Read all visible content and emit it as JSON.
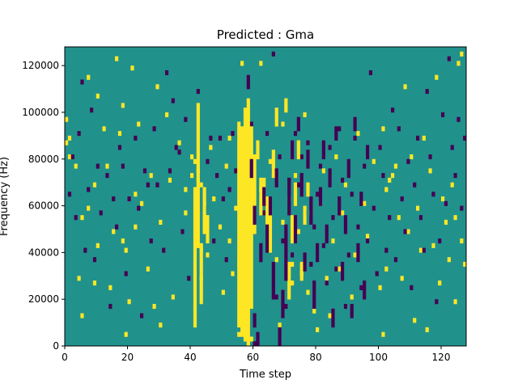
{
  "chart_data": {
    "type": "heatmap",
    "title": "Predicted : Gma",
    "xlabel": "Time step",
    "ylabel": "Frequency (Hz)",
    "xlim": [
      0,
      128
    ],
    "ylim": [
      0,
      128000
    ],
    "x_ticks": [
      0,
      20,
      40,
      60,
      80,
      100,
      120
    ],
    "x_tick_labels": [
      "0",
      "20",
      "40",
      "60",
      "80",
      "100",
      "120"
    ],
    "y_ticks": [
      0,
      20000,
      40000,
      60000,
      80000,
      100000,
      120000
    ],
    "y_tick_labels": [
      "0",
      "20000",
      "40000",
      "60000",
      "80000",
      "100000",
      "120000"
    ],
    "grid": false,
    "colormap": "viridis",
    "value_levels": [
      -1,
      0,
      1
    ],
    "level_colors": {
      "-1": "#440154",
      "0": "#21918c",
      "1": "#fde725"
    },
    "background_level": 0,
    "frequency_bins": 64,
    "bin_width_hz": 2000,
    "cells_high": [
      [
        0,
        43
      ],
      [
        0,
        48
      ],
      [
        1,
        40
      ],
      [
        1,
        44
      ],
      [
        3,
        38
      ],
      [
        4,
        14
      ],
      [
        5,
        6
      ],
      [
        5,
        27
      ],
      [
        7,
        29
      ],
      [
        7,
        57
      ],
      [
        9,
        13
      ],
      [
        9,
        34
      ],
      [
        10,
        21
      ],
      [
        10,
        53
      ],
      [
        12,
        46
      ],
      [
        13,
        38
      ],
      [
        14,
        12
      ],
      [
        15,
        24
      ],
      [
        16,
        61
      ],
      [
        17,
        45
      ],
      [
        18,
        22
      ],
      [
        18,
        51
      ],
      [
        19,
        2
      ],
      [
        19,
        20
      ],
      [
        20,
        9
      ],
      [
        21,
        59
      ],
      [
        22,
        25
      ],
      [
        22,
        32
      ],
      [
        23,
        47
      ],
      [
        24,
        30
      ],
      [
        26,
        16
      ],
      [
        27,
        36
      ],
      [
        28,
        8
      ],
      [
        29,
        55
      ],
      [
        30,
        26
      ],
      [
        30,
        4
      ],
      [
        32,
        49
      ],
      [
        33,
        35
      ],
      [
        34,
        10
      ],
      [
        36,
        43
      ],
      [
        38,
        28
      ],
      [
        38,
        33
      ],
      [
        40,
        40
      ],
      [
        40,
        36
      ],
      [
        41,
        39
      ],
      [
        42,
        37
      ],
      [
        42,
        35
      ],
      [
        43,
        14
      ],
      [
        43,
        20
      ],
      [
        43,
        34
      ],
      [
        44,
        27
      ],
      [
        44,
        30
      ],
      [
        45,
        19
      ],
      [
        46,
        42
      ],
      [
        47,
        31
      ],
      [
        49,
        25
      ],
      [
        50,
        11
      ],
      [
        51,
        38
      ],
      [
        52,
        44
      ],
      [
        52,
        22
      ],
      [
        53,
        15
      ],
      [
        54,
        29
      ],
      [
        55,
        2
      ],
      [
        55,
        17
      ],
      [
        56,
        60
      ],
      [
        57,
        1
      ],
      [
        58,
        1
      ],
      [
        59,
        1
      ],
      [
        62,
        33
      ],
      [
        62,
        60
      ],
      [
        65,
        39
      ],
      [
        67,
        18
      ],
      [
        68,
        4
      ],
      [
        69,
        26
      ],
      [
        69,
        47
      ],
      [
        71,
        31
      ],
      [
        72,
        17
      ],
      [
        72,
        13
      ],
      [
        73,
        36
      ],
      [
        74,
        24
      ],
      [
        75,
        15
      ],
      [
        76,
        49
      ],
      [
        77,
        11
      ],
      [
        78,
        28
      ],
      [
        79,
        7
      ],
      [
        80,
        3
      ],
      [
        81,
        30
      ],
      [
        82,
        37
      ],
      [
        83,
        14
      ],
      [
        84,
        6
      ],
      [
        85,
        22
      ],
      [
        86,
        40
      ],
      [
        87,
        16
      ],
      [
        88,
        28
      ],
      [
        89,
        34
      ],
      [
        91,
        10
      ],
      [
        92,
        19
      ],
      [
        93,
        45
      ],
      [
        95,
        30
      ],
      [
        96,
        23
      ],
      [
        98,
        39
      ],
      [
        100,
        12
      ],
      [
        101,
        2
      ],
      [
        101,
        46
      ],
      [
        102,
        33
      ],
      [
        102,
        16
      ],
      [
        103,
        35
      ],
      [
        104,
        36
      ],
      [
        105,
        38
      ],
      [
        106,
        27
      ],
      [
        107,
        14
      ],
      [
        108,
        55
      ],
      [
        109,
        24
      ],
      [
        110,
        40
      ],
      [
        111,
        5
      ],
      [
        112,
        29
      ],
      [
        113,
        20
      ],
      [
        114,
        44
      ],
      [
        115,
        3
      ],
      [
        116,
        37
      ],
      [
        117,
        21
      ],
      [
        118,
        57
      ],
      [
        119,
        13
      ],
      [
        120,
        31
      ],
      [
        121,
        26
      ],
      [
        122,
        18
      ],
      [
        123,
        34
      ],
      [
        124,
        9
      ],
      [
        124,
        27
      ],
      [
        125,
        60
      ],
      [
        126,
        62
      ],
      [
        126,
        22
      ],
      [
        127,
        17
      ]
    ],
    "cells_low": [
      [
        1,
        32
      ],
      [
        2,
        40
      ],
      [
        3,
        27
      ],
      [
        4,
        45
      ],
      [
        5,
        56
      ],
      [
        6,
        20
      ],
      [
        7,
        33
      ],
      [
        8,
        50
      ],
      [
        9,
        18
      ],
      [
        10,
        38
      ],
      [
        11,
        28
      ],
      [
        13,
        36
      ],
      [
        14,
        8
      ],
      [
        15,
        31
      ],
      [
        16,
        25
      ],
      [
        17,
        42
      ],
      [
        18,
        38
      ],
      [
        19,
        15
      ],
      [
        20,
        31
      ],
      [
        22,
        44
      ],
      [
        23,
        29
      ],
      [
        24,
        6
      ],
      [
        25,
        37
      ],
      [
        26,
        34
      ],
      [
        27,
        22
      ],
      [
        28,
        46
      ],
      [
        29,
        34
      ],
      [
        31,
        20
      ],
      [
        32,
        58
      ],
      [
        33,
        37
      ],
      [
        34,
        52
      ],
      [
        35,
        42
      ],
      [
        36,
        41
      ],
      [
        37,
        24
      ],
      [
        38,
        48
      ],
      [
        39,
        14
      ],
      [
        42,
        54
      ],
      [
        44,
        29
      ],
      [
        45,
        39
      ],
      [
        46,
        44
      ],
      [
        47,
        22
      ],
      [
        48,
        36
      ],
      [
        49,
        44
      ],
      [
        50,
        31
      ],
      [
        51,
        18
      ],
      [
        52,
        33
      ],
      [
        53,
        45
      ],
      [
        54,
        37
      ],
      [
        55,
        44
      ],
      [
        56,
        41
      ],
      [
        57,
        38
      ],
      [
        58,
        40
      ],
      [
        59,
        47
      ],
      [
        60,
        0
      ],
      [
        61,
        0
      ],
      [
        62,
        32
      ],
      [
        63,
        28
      ],
      [
        64,
        45
      ],
      [
        65,
        22
      ],
      [
        66,
        37
      ],
      [
        66,
        62
      ],
      [
        67,
        10
      ],
      [
        68,
        40
      ],
      [
        69,
        22
      ],
      [
        70,
        8
      ],
      [
        71,
        35
      ],
      [
        72,
        19
      ],
      [
        73,
        45
      ],
      [
        74,
        34
      ],
      [
        75,
        40
      ],
      [
        76,
        28
      ],
      [
        77,
        43
      ],
      [
        78,
        17
      ],
      [
        79,
        25
      ],
      [
        80,
        32
      ],
      [
        81,
        38
      ],
      [
        82,
        21
      ],
      [
        83,
        13
      ],
      [
        84,
        42
      ],
      [
        85,
        27
      ],
      [
        86,
        16
      ],
      [
        87,
        46
      ],
      [
        88,
        35
      ],
      [
        89,
        8
      ],
      [
        90,
        19
      ],
      [
        91,
        32
      ],
      [
        92,
        44
      ],
      [
        93,
        25
      ],
      [
        94,
        12
      ],
      [
        95,
        38
      ],
      [
        96,
        22
      ],
      [
        97,
        58
      ],
      [
        98,
        29
      ],
      [
        99,
        15
      ],
      [
        100,
        42
      ],
      [
        101,
        36
      ],
      [
        102,
        20
      ],
      [
        103,
        27
      ],
      [
        104,
        50
      ],
      [
        105,
        18
      ],
      [
        106,
        46
      ],
      [
        107,
        31
      ],
      [
        108,
        24
      ],
      [
        109,
        39
      ],
      [
        110,
        12
      ],
      [
        111,
        34
      ],
      [
        112,
        44
      ],
      [
        113,
        27
      ],
      [
        114,
        20
      ],
      [
        115,
        54
      ],
      [
        116,
        40
      ],
      [
        117,
        32
      ],
      [
        118,
        9
      ],
      [
        119,
        22
      ],
      [
        120,
        49
      ],
      [
        121,
        30
      ],
      [
        122,
        61
      ],
      [
        123,
        42
      ],
      [
        124,
        36
      ],
      [
        125,
        48
      ],
      [
        126,
        29
      ],
      [
        127,
        44
      ]
    ],
    "runs_high": [
      [
        41,
        4,
        30
      ],
      [
        42,
        21,
        31
      ],
      [
        43,
        9,
        13
      ],
      [
        44,
        24,
        10
      ],
      [
        45,
        22,
        6
      ],
      [
        55,
        4,
        44
      ],
      [
        56,
        2,
        45
      ],
      [
        57,
        2,
        49
      ],
      [
        58,
        0,
        53
      ],
      [
        59,
        8,
        39
      ],
      [
        60,
        24,
        17
      ],
      [
        61,
        40,
        4
      ],
      [
        62,
        28,
        8
      ],
      [
        63,
        30,
        6
      ],
      [
        64,
        24,
        8
      ],
      [
        65,
        20,
        10
      ],
      [
        66,
        36,
        6
      ],
      [
        67,
        47,
        4
      ],
      [
        70,
        50,
        3
      ],
      [
        71,
        10,
        8
      ],
      [
        72,
        22,
        6
      ],
      [
        73,
        30,
        5
      ],
      [
        74,
        40,
        4
      ],
      [
        75,
        14,
        4
      ],
      [
        76,
        26,
        4
      ],
      [
        77,
        32,
        3
      ]
    ],
    "runs_low": [
      [
        58,
        55,
        3
      ],
      [
        59,
        36,
        4
      ],
      [
        60,
        4,
        3
      ],
      [
        60,
        26,
        4
      ],
      [
        61,
        0,
        3
      ],
      [
        62,
        18,
        4
      ],
      [
        63,
        30,
        4
      ],
      [
        64,
        20,
        6
      ],
      [
        65,
        28,
        4
      ],
      [
        66,
        10,
        8
      ],
      [
        67,
        34,
        4
      ],
      [
        68,
        0,
        4
      ],
      [
        69,
        6,
        6
      ],
      [
        70,
        14,
        12
      ],
      [
        71,
        28,
        8
      ],
      [
        72,
        40,
        4
      ],
      [
        73,
        22,
        6
      ],
      [
        74,
        46,
        3
      ],
      [
        75,
        32,
        5
      ],
      [
        76,
        16,
        4
      ],
      [
        77,
        38,
        4
      ],
      [
        78,
        26,
        6
      ],
      [
        79,
        8,
        6
      ],
      [
        80,
        18,
        4
      ],
      [
        81,
        30,
        4
      ],
      [
        82,
        40,
        4
      ],
      [
        83,
        22,
        4
      ],
      [
        84,
        34,
        4
      ],
      [
        85,
        4,
        4
      ],
      [
        86,
        44,
        3
      ],
      [
        87,
        28,
        4
      ],
      [
        88,
        14,
        4
      ],
      [
        89,
        24,
        4
      ],
      [
        90,
        36,
        4
      ],
      [
        91,
        6,
        3
      ],
      [
        92,
        46,
        3
      ],
      [
        93,
        18,
        4
      ],
      [
        94,
        30,
        3
      ],
      [
        95,
        10,
        4
      ],
      [
        96,
        40,
        3
      ]
    ]
  }
}
